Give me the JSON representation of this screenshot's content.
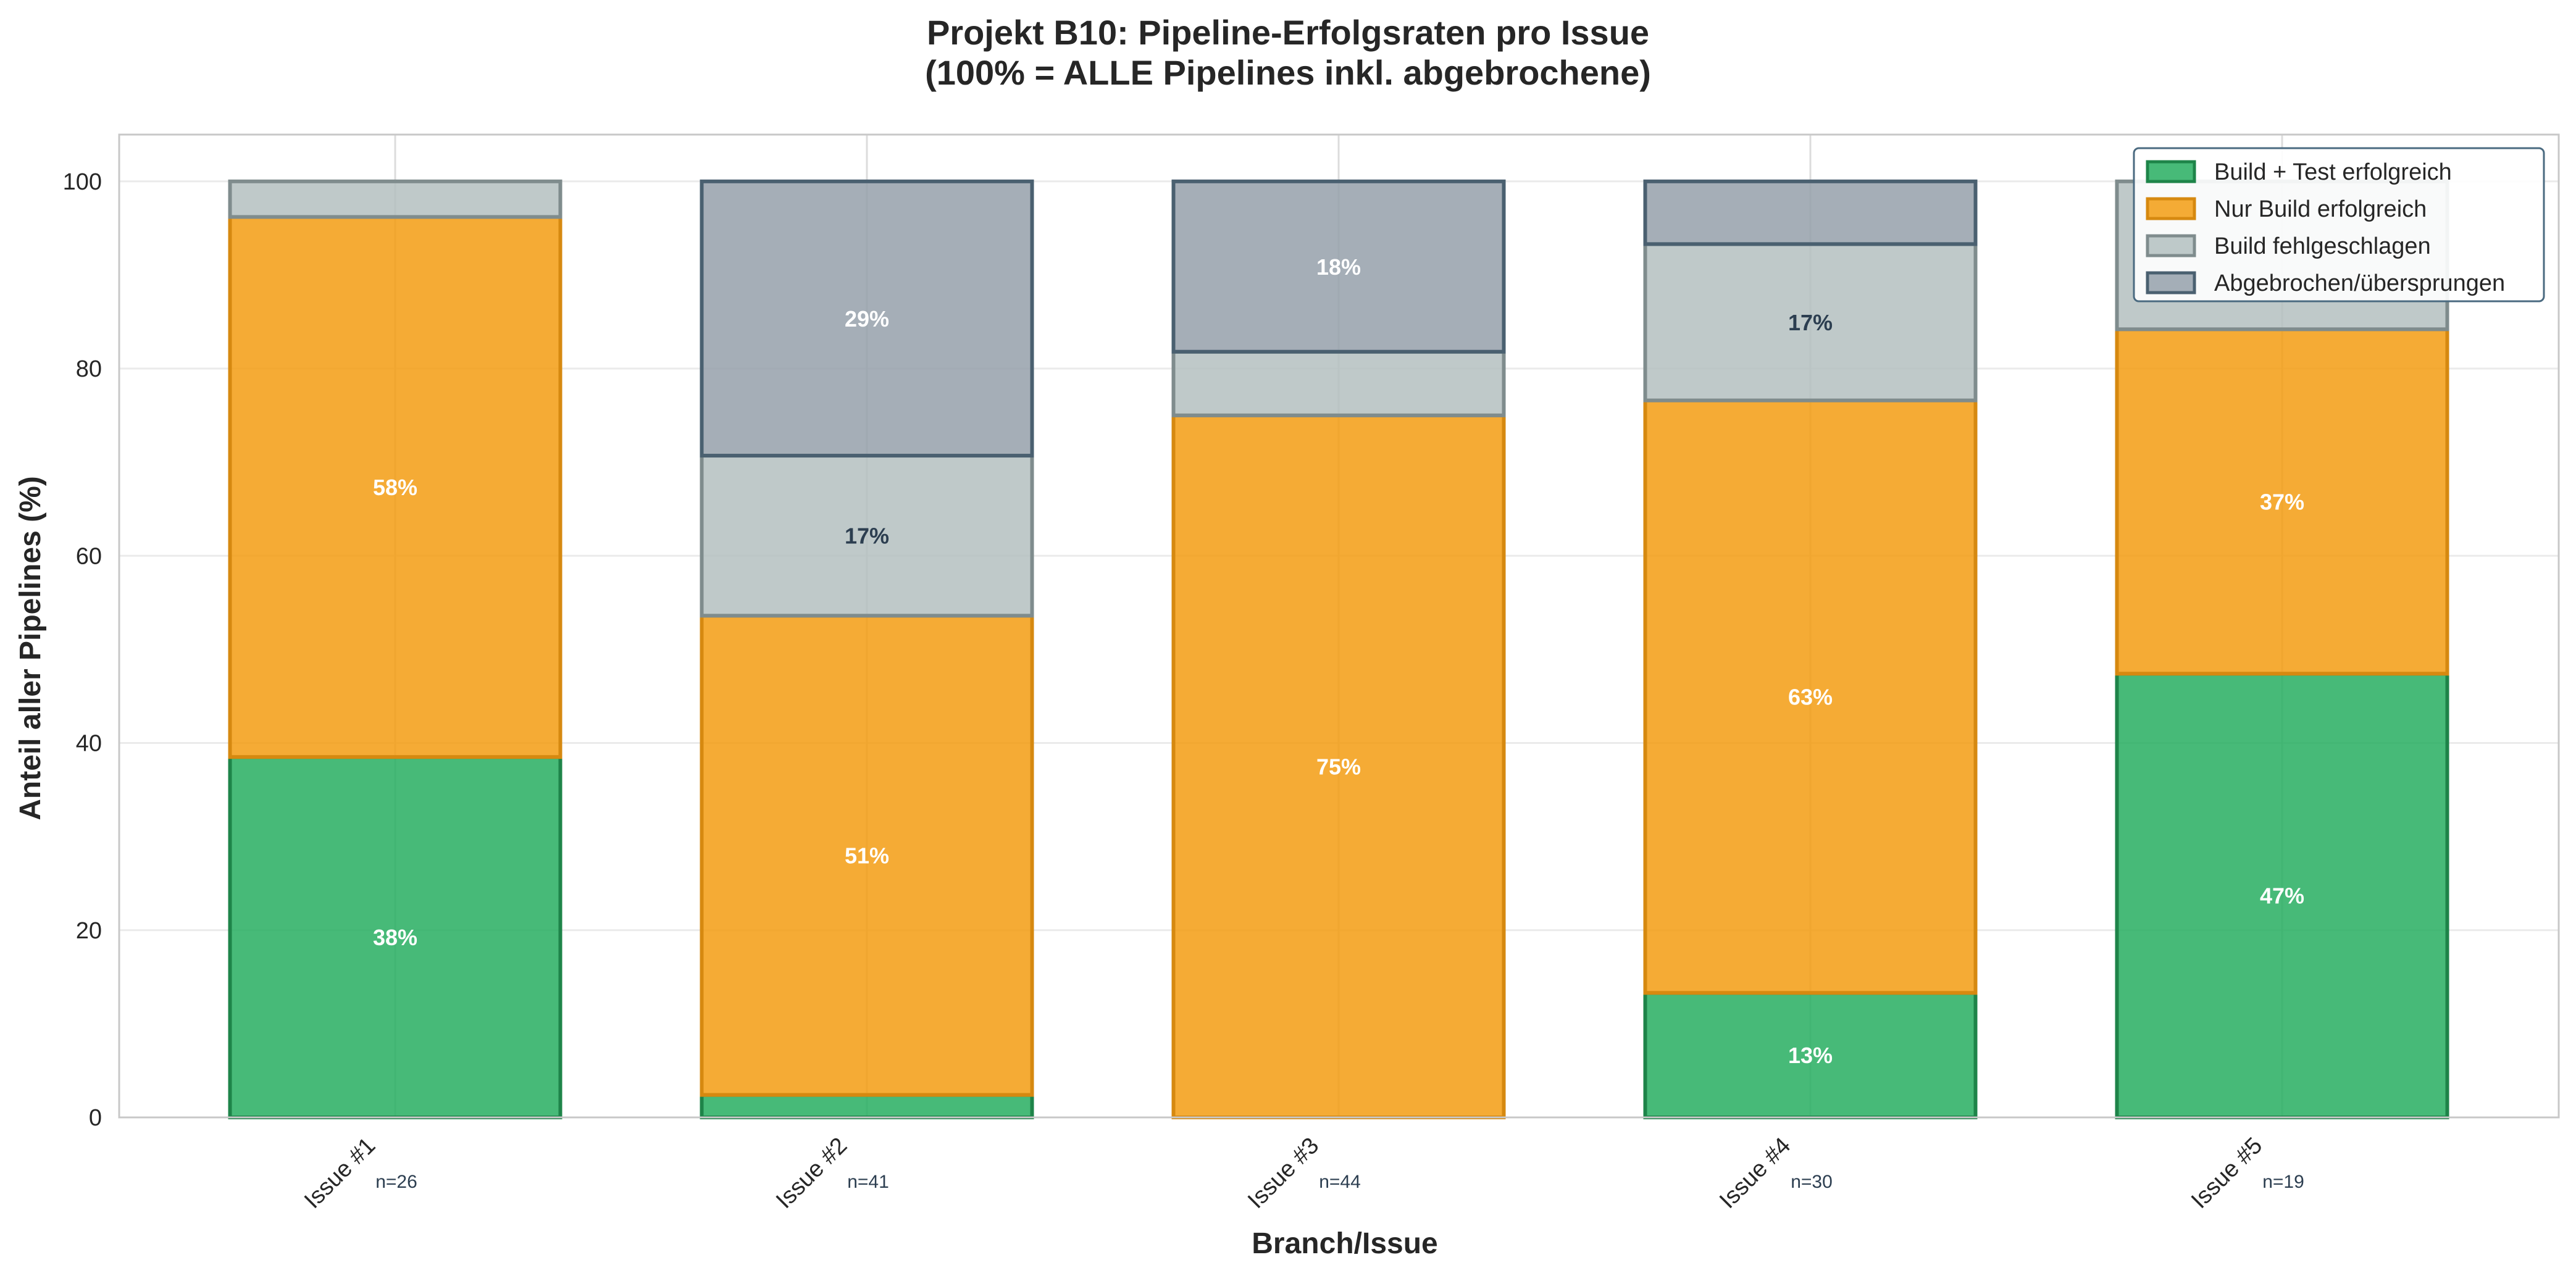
{
  "chart_data": {
    "type": "bar",
    "stacked": true,
    "title": "Projekt B10: Pipeline-Erfolgsraten pro Issue",
    "subtitle": "(100% = ALLE Pipelines inkl. abgebrochene)",
    "xlabel": "Branch/Issue",
    "ylabel": "Anteil aller Pipelines (%)",
    "ylim": [
      0,
      105
    ],
    "yticks": [
      0,
      20,
      40,
      60,
      80,
      100
    ],
    "grid": true,
    "legend_position": "top-right",
    "categories": [
      "Issue #1",
      "Issue #2",
      "Issue #3",
      "Issue #4",
      "Issue #5"
    ],
    "sample_sizes": [
      "n=26",
      "n=41",
      "n=44",
      "n=30",
      "n=19"
    ],
    "series": [
      {
        "name": "Build + Test erfolgreich",
        "color": "#27ae60",
        "edge": "#1e8449",
        "values": [
          38.5,
          2.4,
          0,
          13.3,
          47.4
        ],
        "label_color": "#ffffff"
      },
      {
        "name": "Nur Build erfolgreich",
        "color": "#f39c12",
        "edge": "#d68910",
        "values": [
          57.7,
          51.2,
          75.0,
          63.3,
          36.8
        ],
        "label_color": "#ffffff"
      },
      {
        "name": "Build fehlgeschlagen",
        "color": "#b4bfbf",
        "edge": "#7f8c8d",
        "values": [
          3.8,
          17.1,
          6.8,
          16.7,
          15.8
        ],
        "label_color": "#2c3e50"
      },
      {
        "name": "Abgebrochen/übersprungen",
        "color": "#95a0aa",
        "edge": "#4a6070",
        "values": [
          0,
          29.3,
          18.2,
          6.7,
          0
        ],
        "label_color": "#ffffff"
      }
    ],
    "data_labels": [
      {
        "series": 0,
        "category": 0,
        "text": "38%"
      },
      {
        "series": 1,
        "category": 0,
        "text": "58%"
      },
      {
        "series": 1,
        "category": 1,
        "text": "51%"
      },
      {
        "series": 2,
        "category": 1,
        "text": "17%"
      },
      {
        "series": 3,
        "category": 1,
        "text": "29%"
      },
      {
        "series": 1,
        "category": 2,
        "text": "75%"
      },
      {
        "series": 3,
        "category": 2,
        "text": "18%"
      },
      {
        "series": 0,
        "category": 3,
        "text": "13%"
      },
      {
        "series": 1,
        "category": 3,
        "text": "63%"
      },
      {
        "series": 2,
        "category": 3,
        "text": "17%"
      },
      {
        "series": 0,
        "category": 4,
        "text": "47%"
      },
      {
        "series": 1,
        "category": 4,
        "text": "37%"
      }
    ]
  }
}
